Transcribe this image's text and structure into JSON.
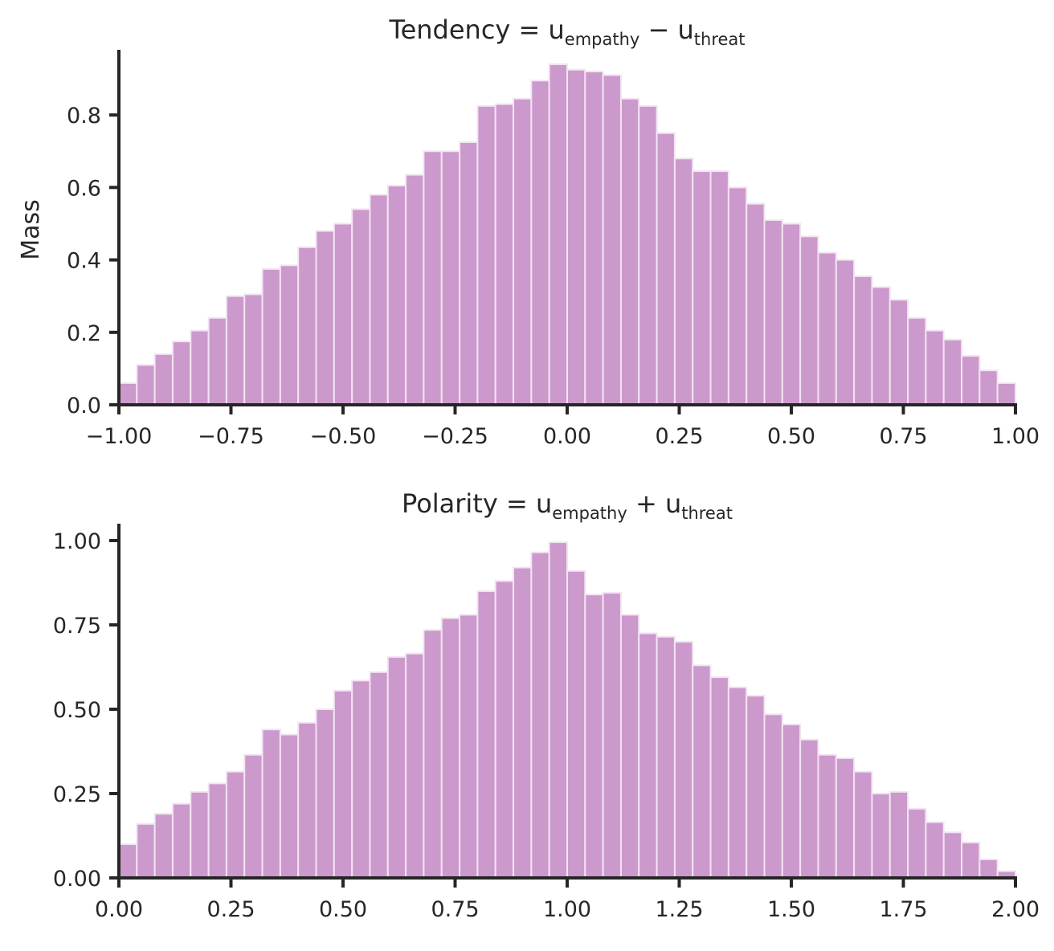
{
  "chart_data": [
    {
      "type": "bar",
      "title": {
        "prefix": "Tendency = u",
        "sub1": "empathy",
        "op": " − u",
        "sub2": "threat"
      },
      "ylabel": "Mass",
      "xlabel": "",
      "xlim": [
        -1.0,
        1.0
      ],
      "ylim": [
        0,
        0.98
      ],
      "bar_color": "#cc99cc",
      "bar_edge_color": "#f2e4f2",
      "grid": false,
      "bin_edges_start": -1.0,
      "bin_width": 0.04,
      "values": [
        0.06,
        0.11,
        0.14,
        0.175,
        0.205,
        0.24,
        0.3,
        0.305,
        0.375,
        0.385,
        0.435,
        0.48,
        0.5,
        0.54,
        0.58,
        0.605,
        0.635,
        0.7,
        0.7,
        0.725,
        0.825,
        0.83,
        0.845,
        0.895,
        0.94,
        0.925,
        0.92,
        0.91,
        0.845,
        0.825,
        0.75,
        0.68,
        0.645,
        0.645,
        0.6,
        0.555,
        0.51,
        0.5,
        0.465,
        0.42,
        0.4,
        0.355,
        0.325,
        0.29,
        0.24,
        0.205,
        0.18,
        0.135,
        0.095,
        0.06
      ],
      "xticks": [
        "−1.00",
        "−0.75",
        "−0.50",
        "−0.25",
        "0.00",
        "0.25",
        "0.50",
        "0.75",
        "1.00"
      ],
      "xtick_values": [
        -1.0,
        -0.75,
        -0.5,
        -0.25,
        0.0,
        0.25,
        0.5,
        0.75,
        1.0
      ],
      "yticks": [
        "0.0",
        "0.2",
        "0.4",
        "0.6",
        "0.8"
      ],
      "ytick_values": [
        0.0,
        0.2,
        0.4,
        0.6,
        0.8
      ]
    },
    {
      "type": "bar",
      "title": {
        "prefix": "Polarity = u",
        "sub1": "empathy",
        "op": " + u",
        "sub2": "threat"
      },
      "ylabel": "",
      "xlabel": "",
      "xlim": [
        0.0,
        2.0
      ],
      "ylim": [
        0,
        1.05
      ],
      "bar_color": "#cc99cc",
      "bar_edge_color": "#f2e4f2",
      "grid": false,
      "bin_edges_start": 0.0,
      "bin_width": 0.04,
      "values": [
        0.1,
        0.16,
        0.19,
        0.22,
        0.255,
        0.28,
        0.315,
        0.365,
        0.44,
        0.425,
        0.46,
        0.5,
        0.555,
        0.585,
        0.61,
        0.655,
        0.665,
        0.735,
        0.77,
        0.78,
        0.85,
        0.88,
        0.92,
        0.965,
        0.995,
        0.91,
        0.84,
        0.845,
        0.78,
        0.725,
        0.715,
        0.7,
        0.63,
        0.595,
        0.565,
        0.54,
        0.485,
        0.455,
        0.41,
        0.365,
        0.355,
        0.315,
        0.25,
        0.255,
        0.205,
        0.165,
        0.135,
        0.105,
        0.055,
        0.02
      ],
      "xticks": [
        "0.00",
        "0.25",
        "0.50",
        "0.75",
        "1.00",
        "1.25",
        "1.50",
        "1.75",
        "2.00"
      ],
      "xtick_values": [
        0.0,
        0.25,
        0.5,
        0.75,
        1.0,
        1.25,
        1.5,
        1.75,
        2.0
      ],
      "yticks": [
        "0.00",
        "0.25",
        "0.50",
        "0.75",
        "1.00"
      ],
      "ytick_values": [
        0.0,
        0.25,
        0.5,
        0.75,
        1.0
      ]
    }
  ]
}
